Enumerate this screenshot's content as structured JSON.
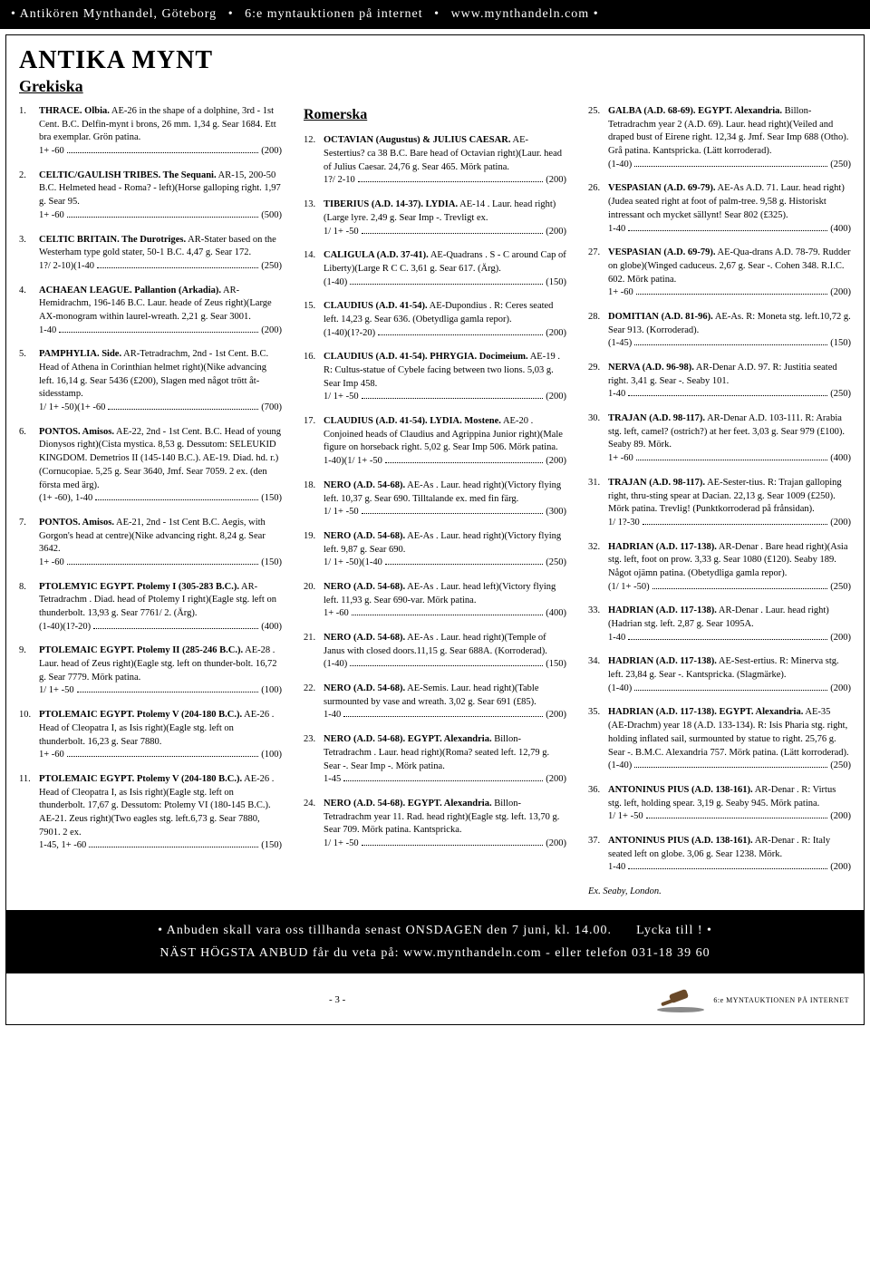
{
  "banner": {
    "left": "Antikören Mynthandel, Göteborg",
    "mid": "6:e myntauktionen på internet",
    "right": "www.mynthandeln.com"
  },
  "titles": {
    "main": "ANTIKA MYNT",
    "greek": "Grekiska",
    "roman": "Romerska"
  },
  "greek": [
    {
      "n": "1.",
      "t": "THRACE. Olbia.",
      "d": " AE-26 in the shape of a dolphine, 3rd - 1st Cent. B.C. Delfin-mynt i brons, 26 mm. 1,34 g. Sear 1684. Ett bra exemplar. Grön patina.",
      "g": "1+ -60",
      "p": "(200)"
    },
    {
      "n": "2.",
      "t": "CELTIC/GAULISH TRIBES. The Sequani.",
      "d": " AR-15, 200-50 B.C. Helmeted head - Roma? - left)(Horse galloping right. 1,97 g. Sear 95.",
      "g": "1+ -60",
      "p": "(500)"
    },
    {
      "n": "3.",
      "t": "CELTIC BRITAIN. The Durotriges.",
      "d": " AR-Stater based on the Westerham type gold stater, 50-1 B.C. 4,47 g. Sear 172.",
      "g": "1?/ 2-10)(1-40",
      "p": "(250)"
    },
    {
      "n": "4.",
      "t": "ACHAEAN LEAGUE. Pallantion (Arkadia).",
      "d": " AR-Hemidrachm, 196-146 B.C. Laur. heade of Zeus right)(Large AX-monogram within laurel-wreath. 2,21 g. Sear 3001.",
      "g": "1-40",
      "p": "(200)"
    },
    {
      "n": "5.",
      "t": "PAMPHYLIA. Side.",
      "d": " AR-Tetradrachm, 2nd - 1st Cent. B.C. Head of Athena in Corinthian helmet right)(Nike advancing left. 16,14 g. Sear 5436 (£200), Slagen med något trött åt-sidesstamp.",
      "g": "1/ 1+ -50)(1+ -60",
      "p": "(700)"
    },
    {
      "n": "6.",
      "t": "PONTOS. Amisos.",
      "d": " AE-22, 2nd - 1st Cent. B.C. Head of young Dionysos right)(Cista mystica. 8,53 g. Dessutom: SELEUKID KINGDOM. Demetrios II (145-140 B.C.). AE-19. Diad. hd. r.)(Cornucopiae. 5,25 g. Sear 3640, Jmf. Sear 7059. 2 ex. (den första med ärg).",
      "g": "(1+ -60), 1-40",
      "p": "(150)"
    },
    {
      "n": "7.",
      "t": "PONTOS. Amisos.",
      "d": " AE-21, 2nd - 1st Cent B.C. Aegis, with Gorgon's head at centre)(Nike advancing right. 8,24 g. Sear 3642.",
      "g": "1+ -60",
      "p": "(150)"
    },
    {
      "n": "8.",
      "t": "PTOLEMYIC EGYPT. Ptolemy I (305-283 B.C.).",
      "d": " AR-Tetradrachm . Diad. head of Ptolemy I right)(Eagle stg. left on thunderbolt. 13,93 g. Sear 7761/ 2. (Ärg).",
      "g": "(1-40)(1?-20)",
      "p": "(400)"
    },
    {
      "n": "9.",
      "t": "PTOLEMAIC EGYPT. Ptolemy II (285-246 B.C.).",
      "d": " AE-28 . Laur. head of Zeus right)(Eagle stg. left on thunder-bolt. 16,72 g. Sear 7779. Mörk patina.",
      "g": "1/ 1+ -50",
      "p": "(100)"
    },
    {
      "n": "10.",
      "t": "PTOLEMAIC EGYPT. Ptolemy V (204-180 B.C.).",
      "d": " AE-26 . Head of Cleopatra I, as Isis right)(Eagle stg. left on thunderbolt. 16,23 g. Sear 7880.",
      "g": "1+ -60",
      "p": "(100)"
    },
    {
      "n": "11.",
      "t": "PTOLEMAIC EGYPT. Ptolemy V (204-180 B.C.).",
      "d": " AE-26 . Head of Cleopatra I, as Isis right)(Eagle stg. left on thunderbolt. 17,67 g. Dessutom: Ptolemy VI (180-145 B.C.). AE-21. Zeus right)(Two eagles stg. left.6,73 g. Sear 7880, 7901. 2 ex.",
      "g": "1-45, 1+ -60",
      "p": "(150)"
    }
  ],
  "roman": [
    {
      "n": "12.",
      "t": "OCTAVIAN (Augustus) & JULIUS CAESAR.",
      "d": " AE-Sestertius? ca 38 B.C. Bare head of Octavian right)(Laur. head of Julius Caesar. 24,76 g. Sear 465. Mörk patina.",
      "g": "1?/ 2-10",
      "p": "(200)"
    },
    {
      "n": "13.",
      "t": "TIBERIUS (A.D. 14-37). LYDIA.",
      "d": " AE-14 . Laur. head right)(Large lyre. 2,49 g. Sear Imp -. Trevligt ex.",
      "g": "1/ 1+ -50",
      "p": "(200)"
    },
    {
      "n": "14.",
      "t": "CALIGULA (A.D. 37-41).",
      "d": " AE-Quadrans . S - C around Cap of Liberty)(Large R C C. 3,61 g. Sear 617. (Ärg).",
      "g": "(1-40)",
      "p": "(150)"
    },
    {
      "n": "15.",
      "t": "CLAUDIUS (A.D. 41-54).",
      "d": " AE-Dupondius . R: Ceres seated left. 14,23 g. Sear 636. (Obetydliga gamla repor).",
      "g": "(1-40)(1?-20)",
      "p": "(200)"
    },
    {
      "n": "16.",
      "t": "CLAUDIUS (A.D. 41-54). PHRYGIA. Docimeium.",
      "d": " AE-19 . R: Cultus-statue of Cybele facing between two lions. 5,03 g. Sear Imp 458.",
      "g": "1/ 1+ -50",
      "p": "(200)"
    },
    {
      "n": "17.",
      "t": "CLAUDIUS (A.D. 41-54). LYDIA. Mostene.",
      "d": " AE-20 . Conjoined heads of Claudius and Agrippina Junior right)(Male figure on horseback right. 5,02 g. Sear Imp 506. Mörk patina.",
      "g": "1-40)(1/ 1+ -50",
      "p": "(200)"
    },
    {
      "n": "18.",
      "t": "NERO (A.D. 54-68).",
      "d": " AE-As . Laur. head right)(Victory flying left. 10,37 g. Sear 690. Tilltalande ex. med fin färg.",
      "g": "1/ 1+ -50",
      "p": "(300)"
    },
    {
      "n": "19.",
      "t": "NERO (A.D. 54-68).",
      "d": " AE-As . Laur. head right)(Victory flying left. 9,87 g. Sear 690.",
      "g": "1/ 1+ -50)(1-40",
      "p": "(250)"
    },
    {
      "n": "20.",
      "t": "NERO (A.D. 54-68).",
      "d": " AE-As . Laur. head left)(Victory flying left. 11,93 g. Sear 690-var. Mörk patina.",
      "g": "1+ -60",
      "p": "(400)"
    },
    {
      "n": "21.",
      "t": "NERO (A.D. 54-68).",
      "d": " AE-As . Laur. head right)(Temple of Janus with closed doors.11,15 g. Sear 688A. (Korroderad).",
      "g": "(1-40)",
      "p": "(150)"
    },
    {
      "n": "22.",
      "t": "NERO (A.D. 54-68).",
      "d": " AE-Semis. Laur. head right)(Table surmounted by vase and wreath. 3,02 g. Sear 691 (£85).",
      "g": "1-40",
      "p": "(200)"
    },
    {
      "n": "23.",
      "t": "NERO (A.D. 54-68). EGYPT. Alexandria.",
      "d": " Billon-Tetradrachm . Laur. head right)(Roma? seated left. 12,79 g. Sear -. Sear Imp -. Mörk patina.",
      "g": "1-45",
      "p": "(200)"
    },
    {
      "n": "24.",
      "t": "NERO (A.D. 54-68). EGYPT. Alexandria.",
      "d": " Billon-Tetradrachm year 11. Rad. head right)(Eagle stg. left. 13,70 g. Sear 709. Mörk patina. Kantspricka.",
      "g": "1/ 1+ -50",
      "p": "(200)"
    }
  ],
  "col3": [
    {
      "n": "25.",
      "t": "GALBA (A.D. 68-69). EGYPT. Alexandria.",
      "d": " Billon-Tetradrachm year 2 (A.D. 69). Laur. head right)(Veiled and draped bust of Eirene right. 12,34 g. Jmf. Sear Imp 688 (Otho). Grå patina. Kantspricka. (Lätt korroderad).",
      "g": "(1-40)",
      "p": "(250)"
    },
    {
      "n": "26.",
      "t": "VESPASIAN (A.D. 69-79).",
      "d": " AE-As A.D. 71. Laur. head right)(Judea seated right at foot of palm-tree. 9,58 g. Historiskt intressant och mycket sällynt! Sear 802 (£325).",
      "g": "1-40",
      "p": "(400)"
    },
    {
      "n": "27.",
      "t": "VESPASIAN (A.D. 69-79).",
      "d": " AE-Qua-drans A.D. 78-79. Rudder on globe)(Winged caduceus. 2,67 g. Sear -. Cohen 348. R.I.C. 602. Mörk patina.",
      "g": "1+ -60",
      "p": "(200)"
    },
    {
      "n": "28.",
      "t": "DOMITIAN (A.D. 81-96).",
      "d": " AE-As. R: Moneta stg. left.10,72 g. Sear 913. (Korroderad).",
      "g": "(1-45)",
      "p": "(150)"
    },
    {
      "n": "29.",
      "t": "NERVA (A.D. 96-98).",
      "d": " AR-Denar A.D. 97. R: Justitia seated right. 3,41 g. Sear -. Seaby 101.",
      "g": "1-40",
      "p": "(250)"
    },
    {
      "n": "30.",
      "t": "TRAJAN (A.D. 98-117).",
      "d": " AR-Denar A.D. 103-111. R: Arabia stg. left, camel? (ostrich?) at her feet. 3,03 g. Sear 979 (£100). Seaby 89. Mörk.",
      "g": "1+ -60",
      "p": "(400)"
    },
    {
      "n": "31.",
      "t": "TRAJAN (A.D. 98-117).",
      "d": " AE-Sester-tius. R: Trajan galloping right, thru-sting spear at Dacian. 22,13 g. Sear 1009 (£250). Mörk patina. Trevlig! (Punktkorroderad på frånsidan).",
      "g": "1/ 1?-30",
      "p": "(200)"
    },
    {
      "n": "32.",
      "t": "HADRIAN (A.D. 117-138).",
      "d": " AR-Denar . Bare head right)(Asia stg. left, foot on prow. 3,33 g. Sear 1080 (£120). Seaby 189. Något ojämn patina. (Obetydliga gamla repor).",
      "g": "(1/ 1+ -50)",
      "p": "(250)"
    },
    {
      "n": "33.",
      "t": "HADRIAN (A.D. 117-138).",
      "d": " AR-Denar . Laur. head right)(Hadrian stg. left. 2,87 g. Sear 1095A.",
      "g": "1-40",
      "p": "(200)"
    },
    {
      "n": "34.",
      "t": "HADRIAN (A.D. 117-138).",
      "d": " AE-Sest-ertius. R: Minerva stg. left. 23,84 g. Sear -. Kantspricka. (Slagmärke).",
      "g": "(1-40)",
      "p": "(200)"
    },
    {
      "n": "35.",
      "t": "HADRIAN (A.D. 117-138). EGYPT. Alexandria.",
      "d": " AE-35 (AE-Drachm) year 18 (A.D. 133-134). R: Isis Pharia stg. right, holding inflated sail, surmounted by statue to right. 25,76 g. Sear -. B.M.C. Alexandria 757. Mörk patina. (Lätt korroderad).",
      "g": "(1-40)",
      "p": "(250)"
    },
    {
      "n": "36.",
      "t": "ANTONINUS PIUS (A.D. 138-161).",
      "d": " AR-Denar . R: Virtus stg. left, holding spear. 3,19 g. Seaby 945. Mörk patina.",
      "g": "1/ 1+ -50",
      "p": "(200)"
    },
    {
      "n": "37.",
      "t": "ANTONINUS PIUS (A.D. 138-161).",
      "d": " AR-Denar . R: Italy seated left on globe. 3,06 g. Sear 1238. Mörk.",
      "g": "1-40",
      "p": "(200)"
    }
  ],
  "exnote": "Ex. Seaby, London.",
  "bottom": {
    "line1_left": "• Anbuden skall vara oss tillhanda senast ONSDAGEN den 7 juni, kl. 14.00.",
    "line1_right": "Lycka till ! •",
    "line2": "NÄST HÖGSTA ANBUD får du veta på: www.mynthandeln.com - eller telefon 031-18 39 60"
  },
  "footer": {
    "page": "- 3 -",
    "right": "6:e MYNTAUKTIONEN PÅ INTERNET"
  }
}
